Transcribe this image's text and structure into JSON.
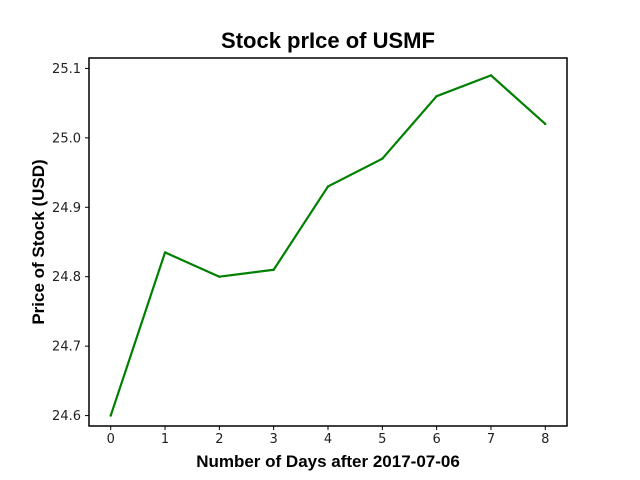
{
  "chart_data": {
    "type": "line",
    "title": "Stock prIce of USMF",
    "xlabel": "Number of Days after 2017-07-06",
    "ylabel": "Price of Stock (USD)",
    "x": [
      0,
      1,
      2,
      3,
      4,
      5,
      6,
      7,
      8
    ],
    "series": [
      {
        "values": [
          24.6,
          24.835,
          24.8,
          24.81,
          24.93,
          24.97,
          25.06,
          25.09,
          25.02
        ],
        "color": "#008000"
      }
    ],
    "xlim": [
      -0.4,
      8.4
    ],
    "ylim": [
      24.585,
      25.115
    ],
    "xticks": [
      "0",
      "1",
      "2",
      "3",
      "4",
      "5",
      "6",
      "7",
      "8"
    ],
    "yticks": [
      "24.6",
      "24.7",
      "24.8",
      "24.9",
      "25.0",
      "25.1"
    ],
    "grid": false
  }
}
